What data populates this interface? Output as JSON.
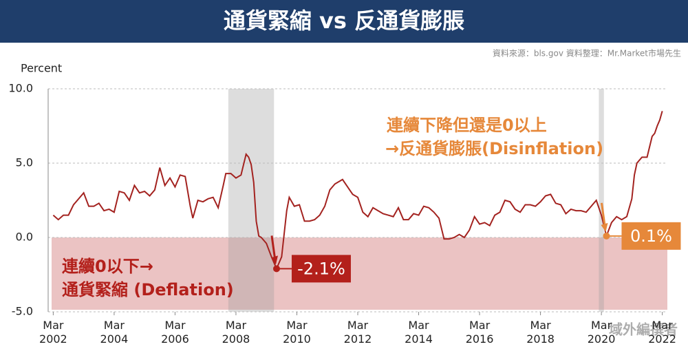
{
  "chart_data": {
    "type": "line",
    "title": "通貨緊縮 vs 反通貨膨脹",
    "source": "資料來源：bls.gov  資料整理：Mr.Market市場先生",
    "y_label": "Percent",
    "watermark": "域外編撰者",
    "x": [
      "2002-03",
      "2002-05",
      "2002-07",
      "2002-09",
      "2002-11",
      "2003-01",
      "2003-03",
      "2003-05",
      "2003-07",
      "2003-09",
      "2003-11",
      "2004-01",
      "2004-03",
      "2004-05",
      "2004-07",
      "2004-09",
      "2004-11",
      "2005-01",
      "2005-03",
      "2005-05",
      "2005-07",
      "2005-09",
      "2005-11",
      "2006-01",
      "2006-03",
      "2006-05",
      "2006-07",
      "2006-09",
      "2006-10",
      "2006-12",
      "2007-02",
      "2007-04",
      "2007-06",
      "2007-08",
      "2007-10",
      "2007-11",
      "2008-01",
      "2008-03",
      "2008-05",
      "2008-07",
      "2008-08",
      "2008-09",
      "2008-10",
      "2008-11",
      "2008-12",
      "2009-01",
      "2009-03",
      "2009-05",
      "2009-07",
      "2009-09",
      "2009-11",
      "2009-12",
      "2010-02",
      "2010-04",
      "2010-06",
      "2010-08",
      "2010-10",
      "2010-12",
      "2011-02",
      "2011-04",
      "2011-06",
      "2011-09",
      "2011-11",
      "2012-01",
      "2012-03",
      "2012-05",
      "2012-07",
      "2012-09",
      "2012-11",
      "2013-01",
      "2013-03",
      "2013-05",
      "2013-07",
      "2013-09",
      "2013-11",
      "2014-01",
      "2014-03",
      "2014-05",
      "2014-07",
      "2014-09",
      "2014-11",
      "2015-01",
      "2015-03",
      "2015-05",
      "2015-07",
      "2015-09",
      "2015-11",
      "2016-01",
      "2016-03",
      "2016-05",
      "2016-07",
      "2016-09",
      "2016-11",
      "2017-01",
      "2017-03",
      "2017-05",
      "2017-07",
      "2017-09",
      "2017-11",
      "2018-01",
      "2018-03",
      "2018-05",
      "2018-07",
      "2018-09",
      "2018-11",
      "2019-01",
      "2019-03",
      "2019-05",
      "2019-07",
      "2019-09",
      "2019-11",
      "2020-01",
      "2020-03",
      "2020-05",
      "2020-07",
      "2020-09",
      "2020-11",
      "2021-01",
      "2021-03",
      "2021-04",
      "2021-05",
      "2021-07",
      "2021-09",
      "2021-11",
      "2021-12",
      "2022-01",
      "2022-02",
      "2022-03"
    ],
    "series": [
      {
        "color": "#a3221f",
        "values": [
          1.5,
          1.2,
          1.5,
          1.5,
          2.2,
          2.6,
          3.0,
          2.1,
          2.1,
          2.3,
          1.8,
          1.9,
          1.7,
          3.1,
          3.0,
          2.5,
          3.5,
          3.0,
          3.1,
          2.8,
          3.2,
          4.7,
          3.5,
          4.0,
          3.4,
          4.2,
          4.1,
          2.1,
          1.3,
          2.5,
          2.4,
          2.6,
          2.7,
          2.0,
          3.5,
          4.3,
          4.3,
          4.0,
          4.2,
          5.6,
          5.4,
          4.9,
          3.7,
          1.1,
          0.1,
          0.0,
          -0.4,
          -1.3,
          -2.1,
          -1.3,
          1.8,
          2.7,
          2.1,
          2.2,
          1.1,
          1.1,
          1.2,
          1.5,
          2.1,
          3.2,
          3.6,
          3.9,
          3.4,
          2.9,
          2.7,
          1.7,
          1.4,
          2.0,
          1.8,
          1.6,
          1.5,
          1.4,
          2.0,
          1.2,
          1.2,
          1.6,
          1.5,
          2.1,
          2.0,
          1.7,
          1.3,
          -0.1,
          -0.1,
          0.0,
          0.2,
          0.0,
          0.5,
          1.4,
          0.9,
          1.0,
          0.8,
          1.5,
          1.7,
          2.5,
          2.4,
          1.9,
          1.7,
          2.2,
          2.2,
          2.1,
          2.4,
          2.8,
          2.9,
          2.3,
          2.2,
          1.6,
          1.9,
          1.8,
          1.8,
          1.7,
          2.1,
          2.5,
          1.5,
          0.1,
          1.0,
          1.4,
          1.2,
          1.4,
          2.6,
          4.2,
          5.0,
          5.4,
          5.4,
          6.8,
          7.0,
          7.5,
          7.9,
          8.5
        ]
      }
    ],
    "xlim": [
      "2002-01",
      "2022-05"
    ],
    "xticks": [
      {
        "value": "2002-03",
        "label": "Mar 2002"
      },
      {
        "value": "2004-03",
        "label": "Mar 2004"
      },
      {
        "value": "2006-03",
        "label": "Mar 2006"
      },
      {
        "value": "2008-03",
        "label": "Mar 2008"
      },
      {
        "value": "2010-03",
        "label": "Mar 2010"
      },
      {
        "value": "2012-03",
        "label": "Mar 2012"
      },
      {
        "value": "2014-03",
        "label": "Mar 2014"
      },
      {
        "value": "2016-03",
        "label": "Mar 2016"
      },
      {
        "value": "2018-03",
        "label": "Mar 2018"
      },
      {
        "value": "2020-03",
        "label": "Mar 2020"
      },
      {
        "value": "2022-03",
        "label": "Mar 2022"
      }
    ],
    "ylim": [
      -5,
      10
    ],
    "yticks": [
      {
        "value": 10,
        "label": "10.0"
      },
      {
        "value": 5,
        "label": "5.0"
      },
      {
        "value": 0,
        "label": "0.0"
      },
      {
        "value": -5,
        "label": "-5.0"
      }
    ],
    "grid": true,
    "recessions": [
      {
        "start": "2007-12",
        "end": "2009-06"
      },
      {
        "start": "2020-02",
        "end": "2020-04"
      }
    ],
    "band": {
      "from": -5,
      "to": 0,
      "color": "#e8b9b9"
    },
    "annotations": [
      {
        "lines": [
          "連續0以下→",
          "通貨緊縮 (Deflation)"
        ],
        "color": "#b3201b"
      },
      {
        "lines": [
          "連續下降但還是0以上",
          "→反通貨膨脹(Disinflation)"
        ],
        "color": "#e6883a"
      }
    ],
    "callouts": [
      {
        "x": "2009-07",
        "value": -2.1,
        "label": "-2.1%",
        "color": "#b3201b"
      },
      {
        "x": "2020-05",
        "value": 0.1,
        "label": "0.1%",
        "color": "#e6883a"
      }
    ]
  }
}
